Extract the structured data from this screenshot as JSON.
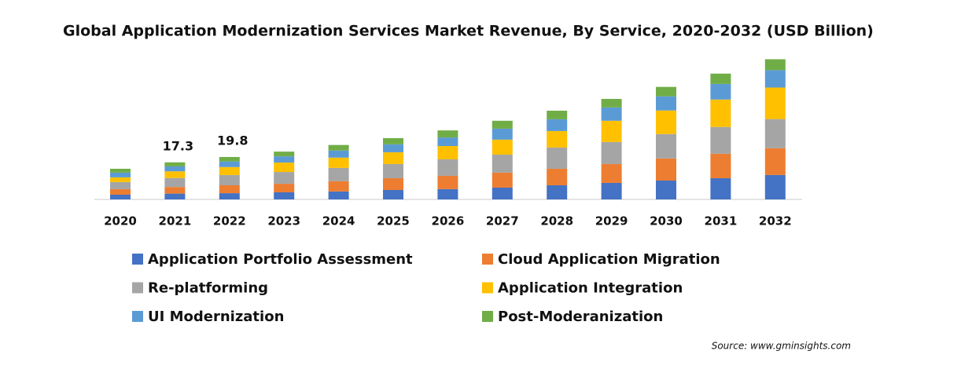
{
  "chart_data": {
    "type": "stacked_bar",
    "title": "Global Application Modernization Services Market Revenue, By Service, 2020-2032 (USD Billion)",
    "categories": [
      "2020",
      "2021",
      "2022",
      "2023",
      "2024",
      "2025",
      "2026",
      "2027",
      "2028",
      "2029",
      "2030",
      "2031",
      "2032"
    ],
    "series": [
      {
        "name": "Application Portfolio Assessment",
        "color": "#4472c4",
        "values": [
          2.2,
          2.7,
          2.9,
          3.3,
          3.7,
          4.4,
          4.8,
          5.5,
          6.6,
          7.7,
          8.8,
          9.9,
          11.4
        ]
      },
      {
        "name": "Cloud Application Migration",
        "color": "#ed7d31",
        "values": [
          2.6,
          3.1,
          3.7,
          4.0,
          4.8,
          5.5,
          6.2,
          7.0,
          7.7,
          8.8,
          10.3,
          11.4,
          12.5
        ]
      },
      {
        "name": "Re-platforming",
        "color": "#a5a5a5",
        "values": [
          3.3,
          4.2,
          4.8,
          5.5,
          6.2,
          6.6,
          7.7,
          8.4,
          9.9,
          10.3,
          11.4,
          12.5,
          13.6
        ]
      },
      {
        "name": "Application Integration",
        "color": "#ffc000",
        "values": [
          2.2,
          3.1,
          3.7,
          4.4,
          4.8,
          5.5,
          6.2,
          7.0,
          7.7,
          9.9,
          11.0,
          12.8,
          14.7
        ]
      },
      {
        "name": "UI Modernization",
        "color": "#5b9bd5",
        "values": [
          2.2,
          2.3,
          2.6,
          2.9,
          3.3,
          3.7,
          4.0,
          5.1,
          5.5,
          6.2,
          6.6,
          7.3,
          8.1
        ]
      },
      {
        "name": "Post-Moderanization",
        "color": "#70ad47",
        "values": [
          1.8,
          1.9,
          2.1,
          2.2,
          2.6,
          2.9,
          3.3,
          3.7,
          4.0,
          4.0,
          4.4,
          4.8,
          5.1
        ]
      }
    ],
    "total_labels": [
      null,
      17.3,
      19.8,
      null,
      null,
      null,
      null,
      null,
      null,
      null,
      null,
      null,
      null
    ],
    "source": "Source: www.gminsights.com"
  }
}
